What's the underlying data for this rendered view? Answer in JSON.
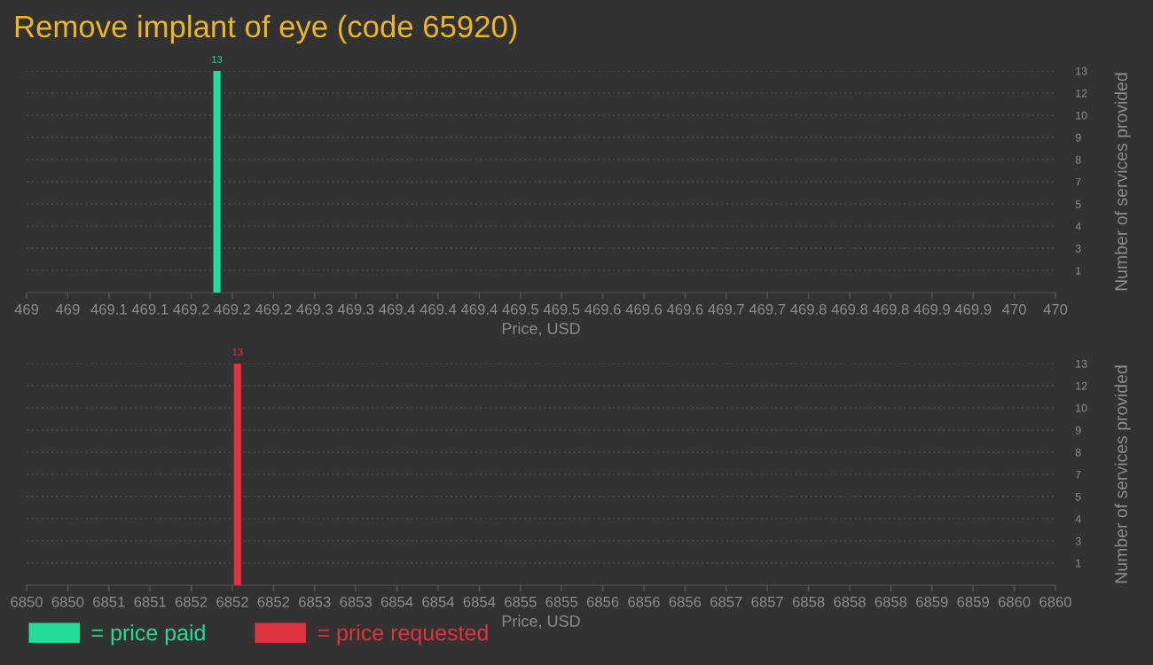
{
  "chart_data": [
    {
      "type": "bar",
      "title": "Remove implant of eye (code 65920)",
      "xlabel": "Price, USD",
      "ylabel": "Number of services provided",
      "x": [
        469.185
      ],
      "series": [
        {
          "name": "= price paid",
          "color": "#22dd99",
          "values": [
            13
          ]
        }
      ],
      "xlim": [
        469,
        470
      ],
      "xticks": [
        469,
        {
          "value": 469.04,
          "label": "469"
        },
        {
          "value": 469.08,
          "label": "469.1"
        },
        {
          "value": 469.12,
          "label": "469.1"
        },
        {
          "value": 469.16,
          "label": "469.2"
        },
        469.2,
        {
          "value": 469.24,
          "label": "469.2"
        },
        {
          "value": 469.28,
          "label": "469.3"
        },
        {
          "value": 469.32,
          "label": "469.3"
        },
        {
          "value": 469.36,
          "label": "469.4"
        },
        469.4,
        {
          "value": 469.44,
          "label": "469.4"
        },
        {
          "value": 469.48,
          "label": "469.5"
        },
        {
          "value": 469.52,
          "label": "469.5"
        },
        {
          "value": 469.56,
          "label": "469.6"
        },
        469.6,
        {
          "value": 469.64,
          "label": "469.6"
        },
        {
          "value": 469.68,
          "label": "469.7"
        },
        {
          "value": 469.72,
          "label": "469.7"
        },
        {
          "value": 469.76,
          "label": "469.8"
        },
        469.8,
        {
          "value": 469.84,
          "label": "469.8"
        },
        {
          "value": 469.88,
          "label": "469.9"
        },
        {
          "value": 469.92,
          "label": "469.9"
        },
        {
          "value": 469.96,
          "label": "470"
        },
        470
      ],
      "ylim": [
        0,
        13
      ],
      "yticks": [
        {
          "value": 1.3,
          "label": "1"
        },
        {
          "value": 2.6,
          "label": "3"
        },
        {
          "value": 3.9,
          "label": "4"
        },
        {
          "value": 5.2,
          "label": "5"
        },
        {
          "value": 6.5,
          "label": "7"
        },
        {
          "value": 7.8,
          "label": "8"
        },
        {
          "value": 9.1,
          "label": "9"
        },
        {
          "value": 10.4,
          "label": "10"
        },
        {
          "value": 11.7,
          "label": "12"
        },
        13
      ],
      "grid": "y",
      "data_labels": true,
      "legend": "bottom left"
    },
    {
      "type": "bar",
      "xlabel": "Price, USD",
      "ylabel": "Number of services provided",
      "x": [
        6852.05
      ],
      "series": [
        {
          "name": "= price requested",
          "color": "#e03340",
          "values": [
            13
          ]
        }
      ],
      "xlim": [
        6850,
        6860
      ],
      "xticks": [
        6850,
        {
          "value": 6850.4,
          "label": "6850"
        },
        {
          "value": 6850.8,
          "label": "6851"
        },
        {
          "value": 6851.2,
          "label": "6851"
        },
        {
          "value": 6851.6,
          "label": "6852"
        },
        6852,
        {
          "value": 6852.4,
          "label": "6852"
        },
        {
          "value": 6852.8,
          "label": "6853"
        },
        {
          "value": 6853.2,
          "label": "6853"
        },
        {
          "value": 6853.6,
          "label": "6854"
        },
        6854,
        {
          "value": 6854.4,
          "label": "6854"
        },
        {
          "value": 6854.8,
          "label": "6855"
        },
        {
          "value": 6855.2,
          "label": "6855"
        },
        {
          "value": 6855.6,
          "label": "6856"
        },
        6856,
        {
          "value": 6856.4,
          "label": "6856"
        },
        {
          "value": 6856.8,
          "label": "6857"
        },
        {
          "value": 6857.2,
          "label": "6857"
        },
        {
          "value": 6857.6,
          "label": "6858"
        },
        6858,
        {
          "value": 6858.4,
          "label": "6858"
        },
        {
          "value": 6858.8,
          "label": "6859"
        },
        {
          "value": 6859.2,
          "label": "6859"
        },
        {
          "value": 6859.6,
          "label": "6860"
        },
        6860
      ],
      "ylim": [
        0,
        13
      ],
      "yticks": [
        {
          "value": 1.3,
          "label": "1"
        },
        {
          "value": 2.6,
          "label": "3"
        },
        {
          "value": 3.9,
          "label": "4"
        },
        {
          "value": 5.2,
          "label": "5"
        },
        {
          "value": 6.5,
          "label": "7"
        },
        {
          "value": 7.8,
          "label": "8"
        },
        {
          "value": 9.1,
          "label": "9"
        },
        {
          "value": 10.4,
          "label": "10"
        },
        {
          "value": 11.7,
          "label": "12"
        },
        13
      ],
      "grid": "y",
      "data_labels": true,
      "legend": "bottom left"
    }
  ]
}
